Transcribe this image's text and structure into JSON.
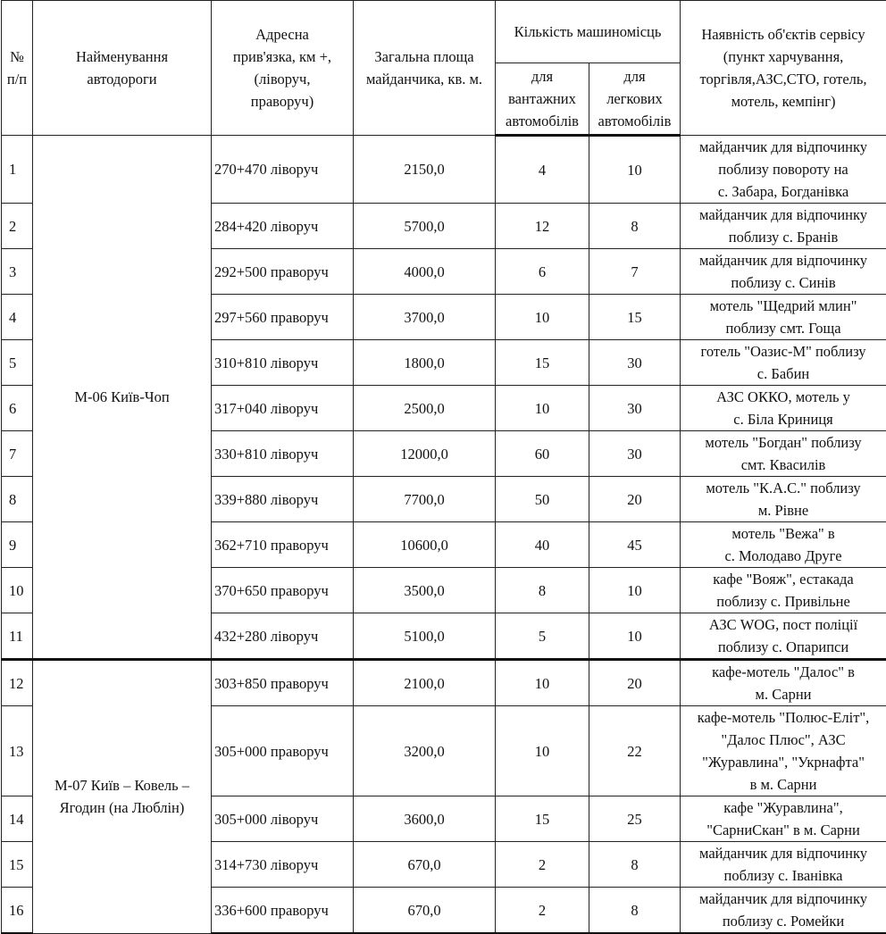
{
  "header": {
    "num": "№\nп/п",
    "road": "Найменування\nавтодороги",
    "address": "Адресна\nприв'язка, км +,\n(ліворуч,\nправоруч)",
    "area": "Загальна площа\nмайданчика, кв. м.",
    "spaces": "Кількість машиномісць",
    "trucks": "для\nвантажних\nавтомобілів",
    "cars": "для\nлегкових\nавтомобілів",
    "services": "Наявність об'єктів сервісу\n(пункт харчування,\nторгівля,АЗС,СТО, готель,\nмотель, кемпінг)"
  },
  "groups": [
    {
      "road": "М-06 Київ-Чоп",
      "rows": [
        {
          "n": "1",
          "addr": "270+470 ліворуч",
          "area": "2150,0",
          "trucks": "4",
          "cars": "10",
          "service": "майданчик для відпочинку\nпоблизу повороту на\nс. Забара, Богданівка"
        },
        {
          "n": "2",
          "addr": "284+420 ліворуч",
          "area": "5700,0",
          "trucks": "12",
          "cars": "8",
          "service": "майданчик для відпочинку\nпоблизу с. Бранів"
        },
        {
          "n": "3",
          "addr": "292+500 праворуч",
          "area": "4000,0",
          "trucks": "6",
          "cars": "7",
          "service": "майданчик для відпочинку\nпоблизу с. Синів"
        },
        {
          "n": "4",
          "addr": "297+560 праворуч",
          "area": "3700,0",
          "trucks": "10",
          "cars": "15",
          "service": "мотель \"Щедрий млин\"\nпоблизу смт. Гоща"
        },
        {
          "n": "5",
          "addr": "310+810 ліворуч",
          "area": "1800,0",
          "trucks": "15",
          "cars": "30",
          "service": "готель \"Оазис-М\" поблизу\nс. Бабин"
        },
        {
          "n": "6",
          "addr": "317+040 ліворуч",
          "area": "2500,0",
          "trucks": "10",
          "cars": "30",
          "service": "АЗС ОККО, мотель у\nс. Біла Криниця"
        },
        {
          "n": "7",
          "addr": "330+810 ліворуч",
          "area": "12000,0",
          "trucks": "60",
          "cars": "30",
          "service": "мотель \"Богдан\" поблизу\nсмт. Квасилів"
        },
        {
          "n": "8",
          "addr": "339+880 ліворуч",
          "area": "7700,0",
          "trucks": "50",
          "cars": "20",
          "service": "мотель \"К.А.С.\" поблизу\nм. Рівне"
        },
        {
          "n": "9",
          "addr": "362+710 праворуч",
          "area": "10600,0",
          "trucks": "40",
          "cars": "45",
          "service": "мотель \"Вежа\" в\nс. Молодаво Друге"
        },
        {
          "n": "10",
          "addr": "370+650 праворуч",
          "area": "3500,0",
          "trucks": "8",
          "cars": "10",
          "service": "кафе \"Вояж\", естакада\nпоблизу с. Привільне"
        },
        {
          "n": "11",
          "addr": "432+280 ліворуч",
          "area": "5100,0",
          "trucks": "5",
          "cars": "10",
          "service": "АЗС WOG, пост поліції\nпоблизу с. Опарипси"
        }
      ]
    },
    {
      "road": "М-07 Київ – Ковель –\nЯгодин (на Люблін)",
      "rows": [
        {
          "n": "12",
          "addr": "303+850 праворуч",
          "area": "2100,0",
          "trucks": "10",
          "cars": "20",
          "service": "кафе-мотель \"Далос\" в\nм. Сарни"
        },
        {
          "n": "13",
          "addr": "305+000 праворуч",
          "area": "3200,0",
          "trucks": "10",
          "cars": "22",
          "service": "кафе-мотель \"Полюс-Еліт\",\n\"Далос Плюс\", АЗС\n\"Журавлина\", \"Укрнафта\"\nв м. Сарни"
        },
        {
          "n": "14",
          "addr": "305+000 ліворуч",
          "area": "3600,0",
          "trucks": "15",
          "cars": "25",
          "service": "кафе \"Журавлина\",\n\"СарниСкан\" в м. Сарни"
        },
        {
          "n": "15",
          "addr": "314+730 ліворуч",
          "area": "670,0",
          "trucks": "2",
          "cars": "8",
          "service": "майданчик для відпочинку\nпоблизу с. Іванівка"
        },
        {
          "n": "16",
          "addr": "336+600 праворуч",
          "area": "670,0",
          "trucks": "2",
          "cars": "8",
          "service": "майданчик для відпочинку\nпоблизу с. Ромейки"
        }
      ]
    }
  ]
}
